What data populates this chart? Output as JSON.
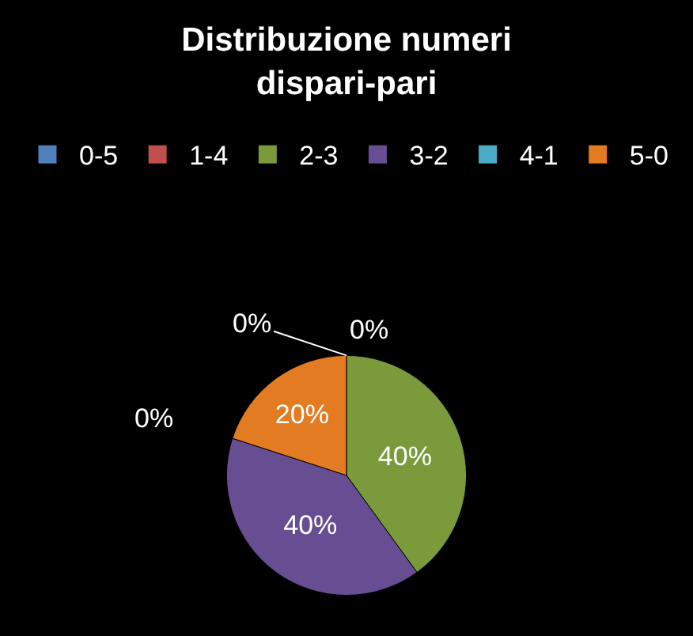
{
  "chart_data": {
    "type": "pie",
    "title": "Distribuzione numeri dispari-pari",
    "categories": [
      "0-5",
      "1-4",
      "2-3",
      "3-2",
      "4-1",
      "5-0"
    ],
    "values": [
      0,
      0,
      40,
      40,
      0,
      20
    ],
    "colors": [
      "#4f81bd",
      "#c0504d",
      "#7a9a3c",
      "#674e92",
      "#4bacc6",
      "#e37b22"
    ],
    "value_labels": [
      "0%",
      "0%",
      "40%",
      "40%",
      "0%",
      "20%"
    ],
    "legend": "top"
  }
}
